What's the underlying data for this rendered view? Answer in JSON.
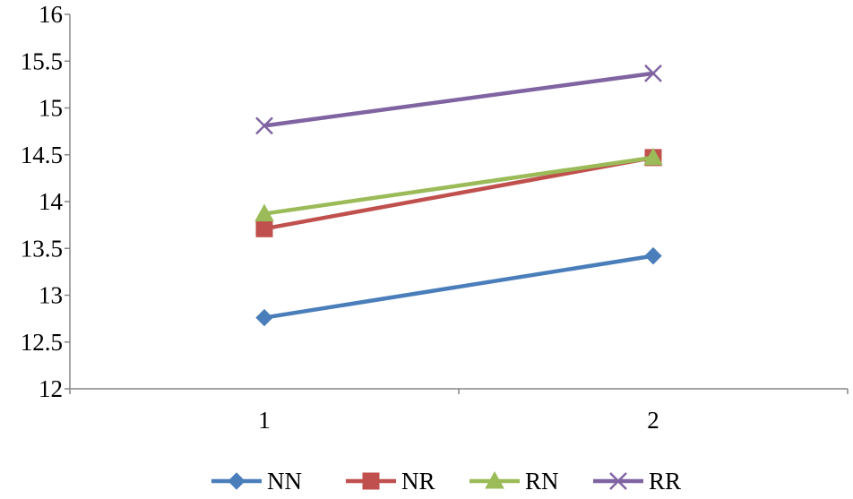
{
  "chart_data": {
    "type": "line",
    "title": "",
    "xlabel": "",
    "ylabel": "",
    "categories": [
      "1",
      "2"
    ],
    "ylim": [
      12,
      16
    ],
    "yticks": [
      "12",
      "12.5",
      "13",
      "13.5",
      "14",
      "14.5",
      "15",
      "15.5",
      "16"
    ],
    "grid": false,
    "legend_position": "bottom",
    "series": [
      {
        "name": "NN",
        "values": [
          12.76,
          13.42
        ],
        "color": "#4a7ebb",
        "marker": "diamond"
      },
      {
        "name": "NR",
        "values": [
          13.71,
          14.47
        ],
        "color": "#c0504d",
        "marker": "square"
      },
      {
        "name": "RN",
        "values": [
          13.87,
          14.47
        ],
        "color": "#9bbb59",
        "marker": "triangle"
      },
      {
        "name": "RR",
        "values": [
          14.81,
          15.37
        ],
        "color": "#8064a2",
        "marker": "x"
      }
    ]
  }
}
